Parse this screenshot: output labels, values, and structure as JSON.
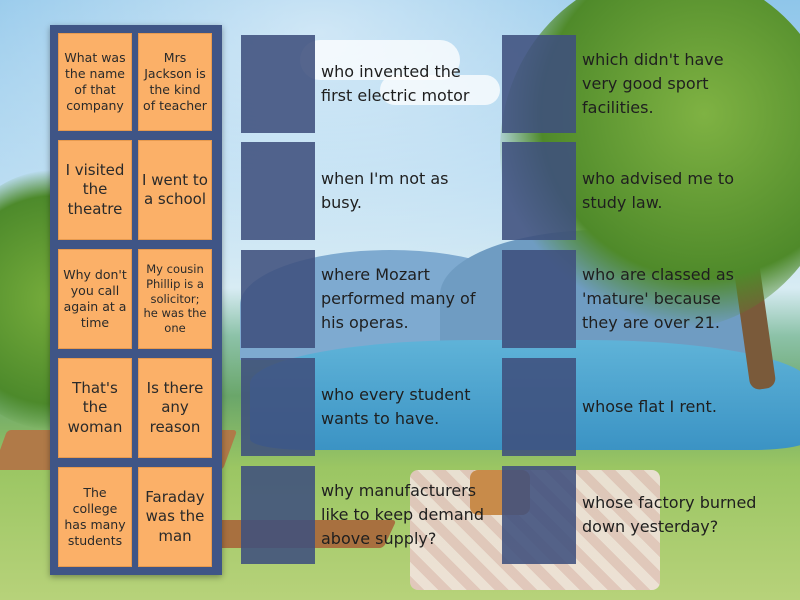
{
  "tiles": [
    "What was the name of that company",
    "Mrs Jackson is the kind of teacher",
    "I visited the theatre",
    "I went to a school",
    "Why don't you call again at a time",
    "My cousin Phillip is a solicitor; he was the one",
    "That's the woman",
    "Is there any reason",
    "The college has many students",
    "Faraday was the man"
  ],
  "clues_left": [
    "who invented the first electric motor",
    "when I'm not as busy.",
    "where Mozart performed many of his operas.",
    "who every student wants to have.",
    "why manufacturers like to keep demand above supply?"
  ],
  "clues_right": [
    "which didn't have very good sport facilities.",
    "who advised me to study law.",
    "who are classed as 'mature' because they are over 21.",
    "whose flat I rent.",
    "whose factory burned down yesterday?"
  ]
}
